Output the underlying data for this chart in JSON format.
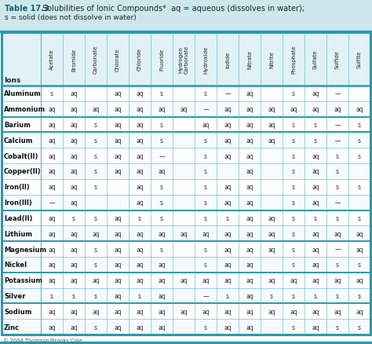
{
  "title_bold": "Table 17.3",
  "title_rest": " Solubilities of Ionic Compounds*",
  "title_line2": "aq = aqueous (dissolves in water); s = solid (does not dissolve in water)",
  "header_bg": "#cce8ed",
  "col_header_bg": "#e0f2f5",
  "row_bg_odd": "#f5fbfc",
  "row_bg_even": "#ffffff",
  "border_color": "#4db8c8",
  "thick_border_color": "#2a9aaa",
  "title_bg": "#cce8ed",
  "columns": [
    "Ions",
    "Acetate",
    "Bromide",
    "Carbonate",
    "Chlorate",
    "Chloride",
    "Fluoride",
    "Hydrogen\nCarbonate",
    "Hydroxide",
    "Iodide",
    "Nitrate",
    "Nitrite",
    "Phosphate",
    "Sulfate",
    "Sulfide",
    "Sulfite"
  ],
  "rows": [
    [
      "Aluminum",
      "s",
      "aq",
      "",
      "aq",
      "aq",
      "s",
      "",
      "s",
      "—",
      "aq",
      "",
      "s",
      "aq",
      "—",
      ""
    ],
    [
      "Ammonium",
      "aq",
      "aq",
      "aq",
      "aq",
      "aq",
      "aq",
      "aq",
      "—",
      "aq",
      "aq",
      "aq",
      "aq",
      "aq",
      "aq",
      "aq"
    ],
    [
      "Barium",
      "aq",
      "aq",
      "s",
      "aq",
      "aq",
      "s",
      "",
      "aq",
      "aq",
      "aq",
      "aq",
      "s",
      "s",
      "—",
      "s"
    ],
    [
      "Calcium",
      "aq",
      "aq",
      "s",
      "aq",
      "aq",
      "s",
      "",
      "s",
      "aq",
      "aq",
      "aq",
      "s",
      "s",
      "—",
      "s"
    ],
    [
      "Cobalt(II)",
      "aq",
      "aq",
      "s",
      "aq",
      "aq",
      "—",
      "",
      "s",
      "aq",
      "aq",
      "",
      "s",
      "aq",
      "s",
      "s"
    ],
    [
      "Copper(II)",
      "aq",
      "aq",
      "s",
      "aq",
      "aq",
      "aq",
      "",
      "s",
      "",
      "aq",
      "",
      "s",
      "aq",
      "s",
      ""
    ],
    [
      "Iron(II)",
      "aq",
      "aq",
      "s",
      "",
      "aq",
      "s",
      "",
      "s",
      "aq",
      "aq",
      "",
      "s",
      "aq",
      "s",
      "s"
    ],
    [
      "Iron(III)",
      "—",
      "aq",
      "",
      "",
      "aq",
      "s",
      "",
      "s",
      "aq",
      "aq",
      "",
      "s",
      "aq",
      "—",
      ""
    ],
    [
      "Lead(II)",
      "aq",
      "s",
      "s",
      "aq",
      "s",
      "s",
      "",
      "s",
      "s",
      "aq",
      "aq",
      "s",
      "s",
      "s",
      "s"
    ],
    [
      "Lithium",
      "aq",
      "aq",
      "aq",
      "aq",
      "aq",
      "aq",
      "aq",
      "aq",
      "aq",
      "aq",
      "aq",
      "s",
      "aq",
      "aq",
      "aq"
    ],
    [
      "Magnesium",
      "aq",
      "aq",
      "s",
      "aq",
      "aq",
      "s",
      "",
      "s",
      "aq",
      "aq",
      "aq",
      "s",
      "aq",
      "—",
      "aq"
    ],
    [
      "Nickel",
      "aq",
      "aq",
      "s",
      "aq",
      "aq",
      "aq",
      "",
      "s",
      "aq",
      "aq",
      "",
      "s",
      "aq",
      "s",
      "s"
    ],
    [
      "Potassium",
      "aq",
      "aq",
      "aq",
      "aq",
      "aq",
      "aq",
      "aq",
      "aq",
      "aq",
      "aq",
      "aq",
      "aq",
      "aq",
      "aq",
      "aq"
    ],
    [
      "Silver",
      "s",
      "s",
      "s",
      "aq",
      "s",
      "aq",
      "",
      "—",
      "s",
      "aq",
      "s",
      "s",
      "s",
      "s",
      "s"
    ],
    [
      "Sodium",
      "aq",
      "aq",
      "aq",
      "aq",
      "aq",
      "aq",
      "aq",
      "aq",
      "aq",
      "aq",
      "aq",
      "aq",
      "aq",
      "aq",
      "aq"
    ],
    [
      "Zinc",
      "aq",
      "aq",
      "s",
      "aq",
      "aq",
      "aq",
      "",
      "s",
      "aq",
      "aq",
      "",
      "s",
      "aq",
      "s",
      "s"
    ]
  ],
  "footer": "© 2004 Thomson/Brooks Cole",
  "thick_after_rows": [
    1,
    2,
    7,
    9,
    11,
    13,
    15
  ],
  "figwidth": 4.74,
  "figheight": 4.39,
  "dpi": 100
}
